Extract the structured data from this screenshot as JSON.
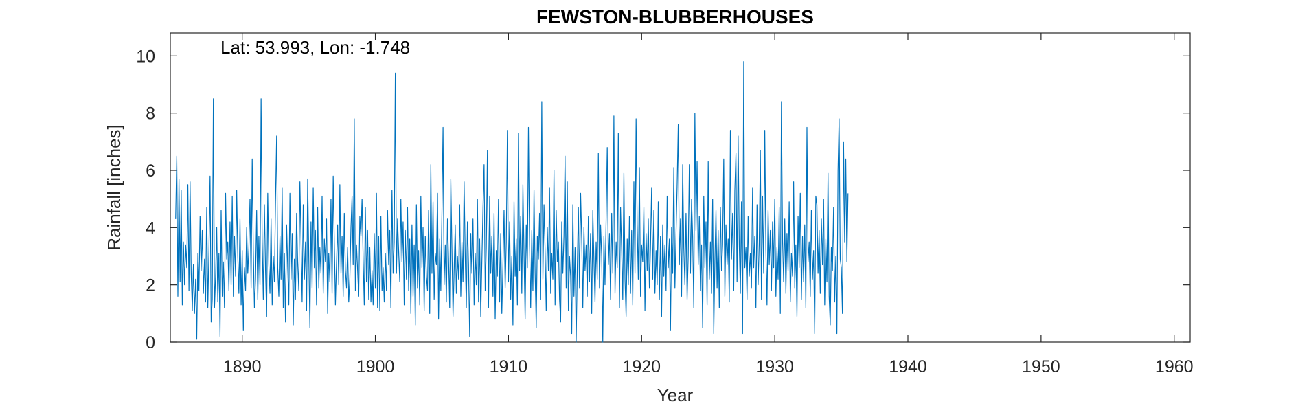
{
  "chart_data": {
    "type": "line",
    "title": "FEWSTON-BLUBBERHOUSES",
    "annotation": "Lat: 53.993, Lon: -1.748",
    "xlabel": "Year",
    "ylabel": "Rainfall [inches]",
    "xlim": [
      1884.6,
      1961.2
    ],
    "ylim": [
      0,
      10.8
    ],
    "xticks": [
      1890,
      1900,
      1910,
      1920,
      1930,
      1940,
      1950,
      1960
    ],
    "xtick_labels": [
      "1890",
      "1900",
      "1910",
      "1920",
      "1930",
      "1940",
      "1950",
      "1960"
    ],
    "yticks": [
      0,
      2,
      4,
      6,
      8,
      10
    ],
    "ytick_labels": [
      "0",
      "2",
      "4",
      "6",
      "8",
      "10"
    ],
    "grid": false,
    "box": true,
    "series": [
      {
        "color": "#0072BD",
        "x_start": 1885.0,
        "x_step": 0.083333,
        "values": [
          4.3,
          6.5,
          1.6,
          5.7,
          2.1,
          5.3,
          1.3,
          3.5,
          2.0,
          3.4,
          2.6,
          5.5,
          1.8,
          5.6,
          2.4,
          1.1,
          2.7,
          1.0,
          2.2,
          0.1,
          3.1,
          1.8,
          4.4,
          2.5,
          3.9,
          1.7,
          2.9,
          1.4,
          4.7,
          1.2,
          3.2,
          5.8,
          0.7,
          1.5,
          8.5,
          1.2,
          2.3,
          4.0,
          1.4,
          3.1,
          0.2,
          4.6,
          1.6,
          2.8,
          1.2,
          5.2,
          2.9,
          3.5,
          1.8,
          4.2,
          2.0,
          5.1,
          1.6,
          3.7,
          2.3,
          5.3,
          3.0,
          1.7,
          4.3,
          1.3,
          3.2,
          0.4,
          2.6,
          1.8,
          4.0,
          2.4,
          3.3,
          5.0,
          1.9,
          6.4,
          3.2,
          1.2,
          2.2,
          4.6,
          1.5,
          3.7,
          2.0,
          8.5,
          3.6,
          1.5,
          4.8,
          2.5,
          0.9,
          5.2,
          2.7,
          1.7,
          4.3,
          1.3,
          3.0,
          2.1,
          4.9,
          7.2,
          2.6,
          1.6,
          3.7,
          2.2,
          5.4,
          1.2,
          3.1,
          0.7,
          4.1,
          2.6,
          1.3,
          5.2,
          2.2,
          3.8,
          0.6,
          2.9,
          1.5,
          4.5,
          2.8,
          1.8,
          5.6,
          3.6,
          1.4,
          4.8,
          2.2,
          3.5,
          1.1,
          5.7,
          3.0,
          0.5,
          4.2,
          1.9,
          5.4,
          2.6,
          3.9,
          1.3,
          4.7,
          1.9,
          3.3,
          2.4,
          5.1,
          1.7,
          3.6,
          2.8,
          4.3,
          1.0,
          3.1,
          2.1,
          5.0,
          1.7,
          5.8,
          3.5,
          1.3,
          2.8,
          4.1,
          2.0,
          5.5,
          2.4,
          3.7,
          1.6,
          4.5,
          2.5,
          1.9,
          3.3,
          1.4,
          2.2,
          4.0,
          5.1,
          2.7,
          7.8,
          1.8,
          3.4,
          2.5,
          1.6,
          4.4,
          3.7,
          5.0,
          2.9,
          1.3,
          4.7,
          2.1,
          3.9,
          1.5,
          3.3,
          1.4,
          2.5,
          1.3,
          3.8,
          1.9,
          5.2,
          1.2,
          3.7,
          1.1,
          4.4,
          1.8,
          2.6,
          1.4,
          3.1,
          1.8,
          4.6,
          2.7,
          3.9,
          1.2,
          5.3,
          2.4,
          3.5,
          9.4,
          2.4,
          4.3,
          3.2,
          2.1,
          5.0,
          2.8,
          4.2,
          1.3,
          3.9,
          2.2,
          4.7,
          1.8,
          3.6,
          1.0,
          4.1,
          1.6,
          3.4,
          0.6,
          4.8,
          1.9,
          3.2,
          1.3,
          5.1,
          2.6,
          4.0,
          1.1,
          3.7,
          2.3,
          1.8,
          4.6,
          1.0,
          6.2,
          2.4,
          4.9,
          1.5,
          3.1,
          2.7,
          5.2,
          0.8,
          3.6,
          1.8,
          4.5,
          7.5,
          2.0,
          3.4,
          1.4,
          4.3,
          2.9,
          1.2,
          5.7,
          3.3,
          0.9,
          2.5,
          4.1,
          1.7,
          3.0,
          2.2,
          4.8,
          1.6,
          3.5,
          2.1,
          5.6,
          3.0,
          1.2,
          4.2,
          2.7,
          0.2,
          3.8,
          2.4,
          4.3,
          1.3,
          3.1,
          2.0,
          5.0,
          1.4,
          3.6,
          0.9,
          2.8,
          4.7,
          6.2,
          1.8,
          3.3,
          6.7,
          1.2,
          5.1,
          2.4,
          3.7,
          1.6,
          4.5,
          0.8,
          3.2,
          2.3,
          5.0,
          1.4,
          3.8,
          1.0,
          2.7,
          4.6,
          1.9,
          3.5,
          7.4,
          2.1,
          4.2,
          1.5,
          3.0,
          0.6,
          4.9,
          2.3,
          3.6,
          1.3,
          7.3,
          2.5,
          4.4,
          1.7,
          5.5,
          3.1,
          0.8,
          4.1,
          2.6,
          7.5,
          3.4,
          1.2,
          3.9,
          1.8,
          5.3,
          2.4,
          0.5,
          3.7,
          2.9,
          4.5,
          1.5,
          8.4,
          2.2,
          4.8,
          3.2,
          1.1,
          4.0,
          2.5,
          5.4,
          1.7,
          3.1,
          2.2,
          6.0,
          1.3,
          4.6,
          2.8,
          3.5,
          1.5,
          0.7,
          4.2,
          2.4,
          3.7,
          6.5,
          1.9,
          5.6,
          1.1,
          3.0,
          2.3,
          0.3,
          4.8,
          1.6,
          3.3,
          0.0,
          2.6,
          4.7,
          1.9,
          5.2,
          3.6,
          1.2,
          4.0,
          2.5,
          3.4,
          1.6,
          4.4,
          2.1,
          3.8,
          1.0,
          4.6,
          2.9,
          1.4,
          3.5,
          2.2,
          6.6,
          1.9,
          4.1,
          3.0,
          0.0,
          3.7,
          2.0,
          4.3,
          6.8,
          2.7,
          3.8,
          1.5,
          4.5,
          2.4,
          7.9,
          1.7,
          3.5,
          2.6,
          7.3,
          1.2,
          4.7,
          3.2,
          1.5,
          5.9,
          2.2,
          0.9,
          3.6,
          2.0,
          4.4,
          1.7,
          3.9,
          1.3,
          5.6,
          2.4,
          7.8,
          4.1,
          2.2,
          6.1,
          1.6,
          3.4,
          2.8,
          4.7,
          1.1,
          3.8,
          2.5,
          4.3,
          1.9,
          3.3,
          5.4,
          2.2,
          4.6,
          1.7,
          3.2,
          2.0,
          4.9,
          1.5,
          3.7,
          0.9,
          4.1,
          2.3,
          3.4,
          1.8,
          5.1,
          2.6,
          3.6,
          0.4,
          4.0,
          2.4,
          6.1,
          1.9,
          3.8,
          5.5,
          7.6,
          2.7,
          4.3,
          1.6,
          6.2,
          3.3,
          2.0,
          4.5,
          1.5,
          3.0,
          6.2,
          2.4,
          5.0,
          3.7,
          1.2,
          8.0,
          3.9,
          6.3,
          2.7,
          4.4,
          1.8,
          3.4,
          0.5,
          5.1,
          2.6,
          4.2,
          1.3,
          6.3,
          2.2,
          3.5,
          1.7,
          5.0,
          0.3,
          2.8,
          4.6,
          1.9,
          3.9,
          1.2,
          4.7,
          2.5,
          3.4,
          6.4,
          1.6,
          4.1,
          2.7,
          3.6,
          1.4,
          7.4,
          2.9,
          4.5,
          1.8,
          5.3,
          6.6,
          2.1,
          7.2,
          3.4,
          1.7,
          4.9,
          0.3,
          9.8,
          2.6,
          3.3,
          1.5,
          4.4,
          2.3,
          3.1,
          1.9,
          5.4,
          2.6,
          3.7,
          1.2,
          4.8,
          2.0,
          3.5,
          6.7,
          1.5,
          5.1,
          2.4,
          7.4,
          3.2,
          1.3,
          4.6,
          2.7,
          3.9,
          1.8,
          4.2,
          2.6,
          5.0,
          1.6,
          3.3,
          2.2,
          4.7,
          1.0,
          8.4,
          3.6,
          2.1,
          4.3,
          1.7,
          3.8,
          2.5,
          4.9,
          1.4,
          3.1,
          2.3,
          5.6,
          1.9,
          3.4,
          0.9,
          4.4,
          2.6,
          5.2,
          1.5,
          3.7,
          2.1,
          4.1,
          1.2,
          7.5,
          2.8,
          3.5,
          1.6,
          4.6,
          2.2,
          3.2,
          0.3,
          5.1,
          4.8,
          2.4,
          3.9,
          1.7,
          4.3,
          2.7,
          5.0,
          1.3,
          3.6,
          2.1,
          5.9,
          1.6,
          0.6,
          3.3,
          2.5,
          4.7,
          1.4,
          3.0,
          0.3,
          6.0,
          7.8,
          2.9,
          2.6,
          1.0,
          7.0,
          3.5,
          6.4,
          2.8,
          5.2
        ]
      }
    ]
  }
}
